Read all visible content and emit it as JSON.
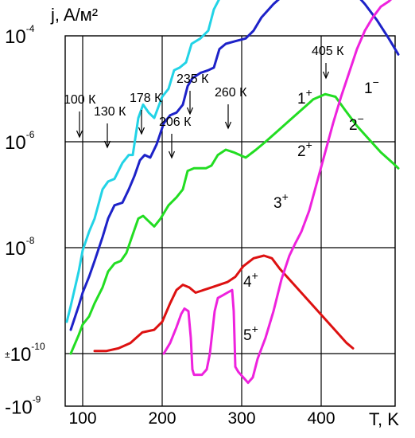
{
  "chart_data": {
    "type": "line",
    "xlabel": "T, K",
    "ylabel": "j, A/м²",
    "xlim": [
      75,
      497
    ],
    "x_ticks": [
      {
        "value": 100,
        "label": "100"
      },
      {
        "value": 200,
        "label": "200"
      },
      {
        "value": 300,
        "label": "300"
      },
      {
        "value": 400,
        "label": "400"
      }
    ],
    "y_ticks": [
      {
        "key": "e4",
        "value": 4,
        "base": "10",
        "exp": "-4",
        "prefix": ""
      },
      {
        "key": "e6",
        "value": 2,
        "base": "10",
        "exp": "-6",
        "prefix": ""
      },
      {
        "key": "e8",
        "value": 0,
        "base": "10",
        "exp": "-8",
        "prefix": ""
      },
      {
        "key": "e10",
        "value": -2,
        "base": "10",
        "exp": "-10",
        "prefix": "±"
      },
      {
        "key": "m9",
        "value": -3,
        "base": "-10",
        "exp": "-9",
        "prefix": ""
      }
    ],
    "y_scale": "symmetric log: lg|j| mapped; positive decades above ±10^-10, negative below",
    "grid": true,
    "legend": "none (curves labelled inline)",
    "annotations": [
      {
        "text": "100 К",
        "x": 100
      },
      {
        "text": "130 К",
        "x": 130
      },
      {
        "text": "178 К",
        "x": 178
      },
      {
        "text": "206 К",
        "x": 206
      },
      {
        "text": "235 К",
        "x": 235
      },
      {
        "text": "260 К",
        "x": 260
      },
      {
        "text": "405 К",
        "x": 405
      }
    ],
    "series": [
      {
        "name": "1⁺ / 1⁻",
        "label_pos": "1",
        "label_neg": "1",
        "sup_pos": "+",
        "sup_neg": "−",
        "color": "#22d3e6",
        "points": [
          [
            80,
            -1.4
          ],
          [
            85,
            -1.1
          ],
          [
            95,
            -0.45
          ],
          [
            100,
            -0.05
          ],
          [
            108,
            0.3
          ],
          [
            115,
            0.55
          ],
          [
            125,
            1.1
          ],
          [
            132,
            1.25
          ],
          [
            140,
            1.3
          ],
          [
            150,
            1.6
          ],
          [
            158,
            1.75
          ],
          [
            163,
            1.75
          ],
          [
            170,
            2.45
          ],
          [
            176,
            2.7
          ],
          [
            183,
            2.55
          ],
          [
            190,
            2.45
          ],
          [
            200,
            2.85
          ],
          [
            208,
            3.0
          ],
          [
            215,
            3.35
          ],
          [
            222,
            3.4
          ],
          [
            230,
            3.5
          ],
          [
            237,
            3.85
          ],
          [
            248,
            3.95
          ],
          [
            258,
            4.1
          ],
          [
            265,
            4.5
          ],
          [
            272,
            4.7
          ],
          [
            282,
            4.75
          ],
          [
            292,
            4.8
          ],
          [
            305,
            5.05
          ],
          [
            320,
            5.4
          ],
          [
            335,
            5.6
          ],
          [
            350,
            5.85
          ],
          [
            365,
            6.05
          ],
          [
            378,
            6.2
          ],
          [
            390,
            6.2
          ],
          [
            400,
            6.1
          ],
          [
            410,
            5.85
          ],
          [
            420,
            5.5
          ],
          [
            430,
            5.2
          ],
          [
            440,
            5.05
          ],
          [
            450,
            4.95
          ],
          [
            460,
            4.95
          ]
        ]
      },
      {
        "name": "1⁻ tail",
        "color": "#22d3e6",
        "points": [
          [
            440,
            5.7
          ],
          [
            448,
            5.3
          ],
          [
            458,
            4.8
          ],
          [
            468,
            4.7
          ],
          [
            478,
            4.8
          ],
          [
            488,
            5.0
          ],
          [
            497,
            5.15
          ]
        ]
      },
      {
        "name": "2⁺ / 2⁻",
        "label_pos": "2",
        "label_neg": "2",
        "sup_pos": "+",
        "sup_neg": "−",
        "color": "#1d22c8",
        "points": [
          [
            85,
            -1.55
          ],
          [
            95,
            -1.1
          ],
          [
            100,
            -0.85
          ],
          [
            108,
            -0.55
          ],
          [
            115,
            -0.25
          ],
          [
            125,
            0.2
          ],
          [
            132,
            0.55
          ],
          [
            140,
            0.8
          ],
          [
            150,
            0.85
          ],
          [
            158,
            1.1
          ],
          [
            165,
            1.35
          ],
          [
            172,
            1.65
          ],
          [
            178,
            1.75
          ],
          [
            185,
            1.7
          ],
          [
            193,
            1.95
          ],
          [
            202,
            2.35
          ],
          [
            210,
            2.5
          ],
          [
            218,
            2.55
          ],
          [
            226,
            2.7
          ],
          [
            232,
            3.05
          ],
          [
            238,
            3.2
          ],
          [
            248,
            3.3
          ],
          [
            258,
            3.35
          ],
          [
            265,
            3.4
          ],
          [
            272,
            3.75
          ],
          [
            280,
            3.85
          ],
          [
            292,
            3.9
          ],
          [
            305,
            3.95
          ],
          [
            315,
            4.1
          ],
          [
            325,
            4.35
          ],
          [
            340,
            4.6
          ],
          [
            355,
            4.8
          ],
          [
            370,
            5.0
          ],
          [
            385,
            5.1
          ],
          [
            398,
            5.15
          ],
          [
            410,
            5.1
          ],
          [
            420,
            4.95
          ],
          [
            432,
            4.85
          ],
          [
            445,
            4.75
          ],
          [
            458,
            4.7
          ],
          [
            470,
            4.8
          ],
          [
            482,
            4.9
          ],
          [
            497,
            5.05
          ]
        ]
      },
      {
        "name": "2⁻ tail",
        "color": "#1d22c8",
        "points": [
          [
            422,
            4.95
          ],
          [
            440,
            4.85
          ],
          [
            455,
            4.6
          ],
          [
            470,
            4.3
          ],
          [
            485,
            3.95
          ],
          [
            497,
            3.65
          ]
        ]
      },
      {
        "name": "3⁺",
        "label_pos": "3",
        "sup_pos": "+",
        "color": "#22dd22",
        "points": [
          [
            85,
            -2.0
          ],
          [
            95,
            -1.65
          ],
          [
            100,
            -1.45
          ],
          [
            108,
            -1.3
          ],
          [
            115,
            -1.05
          ],
          [
            125,
            -0.75
          ],
          [
            132,
            -0.45
          ],
          [
            140,
            -0.3
          ],
          [
            148,
            -0.25
          ],
          [
            155,
            -0.1
          ],
          [
            163,
            0.25
          ],
          [
            170,
            0.55
          ],
          [
            176,
            0.6
          ],
          [
            183,
            0.5
          ],
          [
            190,
            0.4
          ],
          [
            198,
            0.55
          ],
          [
            208,
            0.8
          ],
          [
            218,
            0.95
          ],
          [
            226,
            1.1
          ],
          [
            232,
            1.45
          ],
          [
            240,
            1.5
          ],
          [
            255,
            1.5
          ],
          [
            262,
            1.55
          ],
          [
            270,
            1.75
          ],
          [
            280,
            1.85
          ],
          [
            290,
            1.8
          ],
          [
            305,
            1.7
          ],
          [
            318,
            1.85
          ],
          [
            330,
            2.0
          ],
          [
            345,
            2.2
          ],
          [
            360,
            2.4
          ],
          [
            375,
            2.6
          ],
          [
            390,
            2.8
          ],
          [
            405,
            2.9
          ],
          [
            418,
            2.85
          ],
          [
            430,
            2.6
          ],
          [
            445,
            2.3
          ],
          [
            460,
            2.05
          ],
          [
            475,
            1.8
          ],
          [
            490,
            1.6
          ],
          [
            497,
            1.5
          ]
        ]
      },
      {
        "name": "4⁺",
        "label_pos": "4",
        "sup_pos": "+",
        "color": "#dd1111",
        "points": [
          [
            115,
            -1.95
          ],
          [
            130,
            -1.95
          ],
          [
            145,
            -1.9
          ],
          [
            160,
            -1.8
          ],
          [
            175,
            -1.6
          ],
          [
            190,
            -1.55
          ],
          [
            200,
            -1.4
          ],
          [
            210,
            -1.05
          ],
          [
            218,
            -0.8
          ],
          [
            226,
            -0.7
          ],
          [
            234,
            -0.75
          ],
          [
            242,
            -0.85
          ],
          [
            252,
            -0.8
          ],
          [
            262,
            -0.75
          ],
          [
            272,
            -0.7
          ],
          [
            282,
            -0.65
          ],
          [
            292,
            -0.55
          ],
          [
            302,
            -0.35
          ],
          [
            315,
            -0.2
          ],
          [
            328,
            -0.15
          ],
          [
            338,
            -0.2
          ],
          [
            348,
            -0.4
          ],
          [
            360,
            -0.6
          ],
          [
            375,
            -0.85
          ],
          [
            390,
            -1.1
          ],
          [
            405,
            -1.35
          ],
          [
            420,
            -1.6
          ],
          [
            432,
            -1.8
          ],
          [
            440,
            -1.9
          ]
        ]
      },
      {
        "name": "5⁺",
        "label_pos": "5",
        "sup_pos": "+",
        "color": "#ee22dd",
        "points": [
          [
            202,
            -2.0
          ],
          [
            210,
            -1.8
          ],
          [
            218,
            -1.5
          ],
          [
            224,
            -1.25
          ],
          [
            228,
            -1.15
          ],
          [
            233,
            -1.2
          ],
          [
            236,
            -1.7
          ],
          [
            238,
            -2.3
          ],
          [
            240,
            -2.4
          ],
          [
            244,
            -2.4
          ],
          [
            250,
            -2.4
          ],
          [
            256,
            -2.3
          ],
          [
            260,
            -2.0
          ],
          [
            263,
            -1.6
          ],
          [
            266,
            -1.2
          ],
          [
            270,
            -0.95
          ],
          [
            276,
            -0.9
          ],
          [
            282,
            -0.85
          ],
          [
            288,
            -0.8
          ],
          [
            290,
            -1.2
          ],
          [
            292,
            -2.25
          ],
          [
            296,
            -2.35
          ],
          [
            302,
            -2.45
          ],
          [
            308,
            -2.55
          ],
          [
            314,
            -2.45
          ],
          [
            320,
            -2.1
          ],
          [
            330,
            -1.7
          ],
          [
            340,
            -1.2
          ],
          [
            350,
            -0.6
          ],
          [
            360,
            -0.15
          ],
          [
            368,
            0.1
          ],
          [
            375,
            0.3
          ],
          [
            385,
            0.7
          ],
          [
            395,
            1.25
          ],
          [
            405,
            1.8
          ],
          [
            415,
            2.35
          ],
          [
            425,
            2.85
          ],
          [
            435,
            3.3
          ],
          [
            445,
            3.75
          ],
          [
            455,
            4.1
          ],
          [
            465,
            4.35
          ],
          [
            475,
            4.55
          ],
          [
            485,
            4.65
          ],
          [
            492,
            4.75
          ]
        ]
      }
    ]
  }
}
